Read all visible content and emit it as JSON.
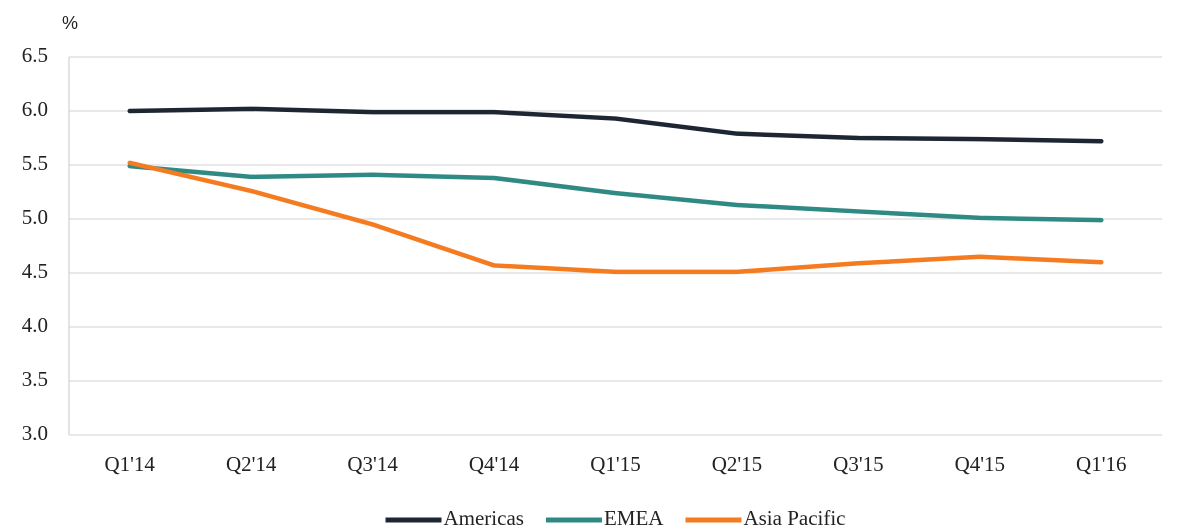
{
  "chart_data": {
    "type": "line",
    "y_label": "%",
    "categories": [
      "Q1'14",
      "Q2'14",
      "Q3'14",
      "Q4'14",
      "Q1'15",
      "Q2'15",
      "Q3'15",
      "Q4'15",
      "Q1'16"
    ],
    "series": [
      {
        "name": "Americas",
        "color": "#1f2633",
        "values": [
          6.0,
          6.02,
          5.99,
          5.99,
          5.93,
          5.79,
          5.75,
          5.74,
          5.72
        ]
      },
      {
        "name": "EMEA",
        "color": "#2f8a84",
        "values": [
          5.49,
          5.39,
          5.41,
          5.38,
          5.24,
          5.13,
          5.07,
          5.01,
          4.99
        ]
      },
      {
        "name": "Asia Pacific",
        "color": "#f47b20",
        "values": [
          5.52,
          5.26,
          4.95,
          4.57,
          4.51,
          4.51,
          4.59,
          4.65,
          4.6
        ]
      }
    ],
    "ylim": [
      3,
      6.5
    ],
    "yticks": [
      {
        "value": 3,
        "label": "3.0"
      },
      3.5,
      {
        "value": 4,
        "label": "4.0"
      },
      4.5,
      {
        "value": 5,
        "label": "5.0"
      },
      5.5,
      {
        "value": 6,
        "label": "6.0"
      },
      6.5
    ],
    "grid": true,
    "legend": "bottom"
  }
}
